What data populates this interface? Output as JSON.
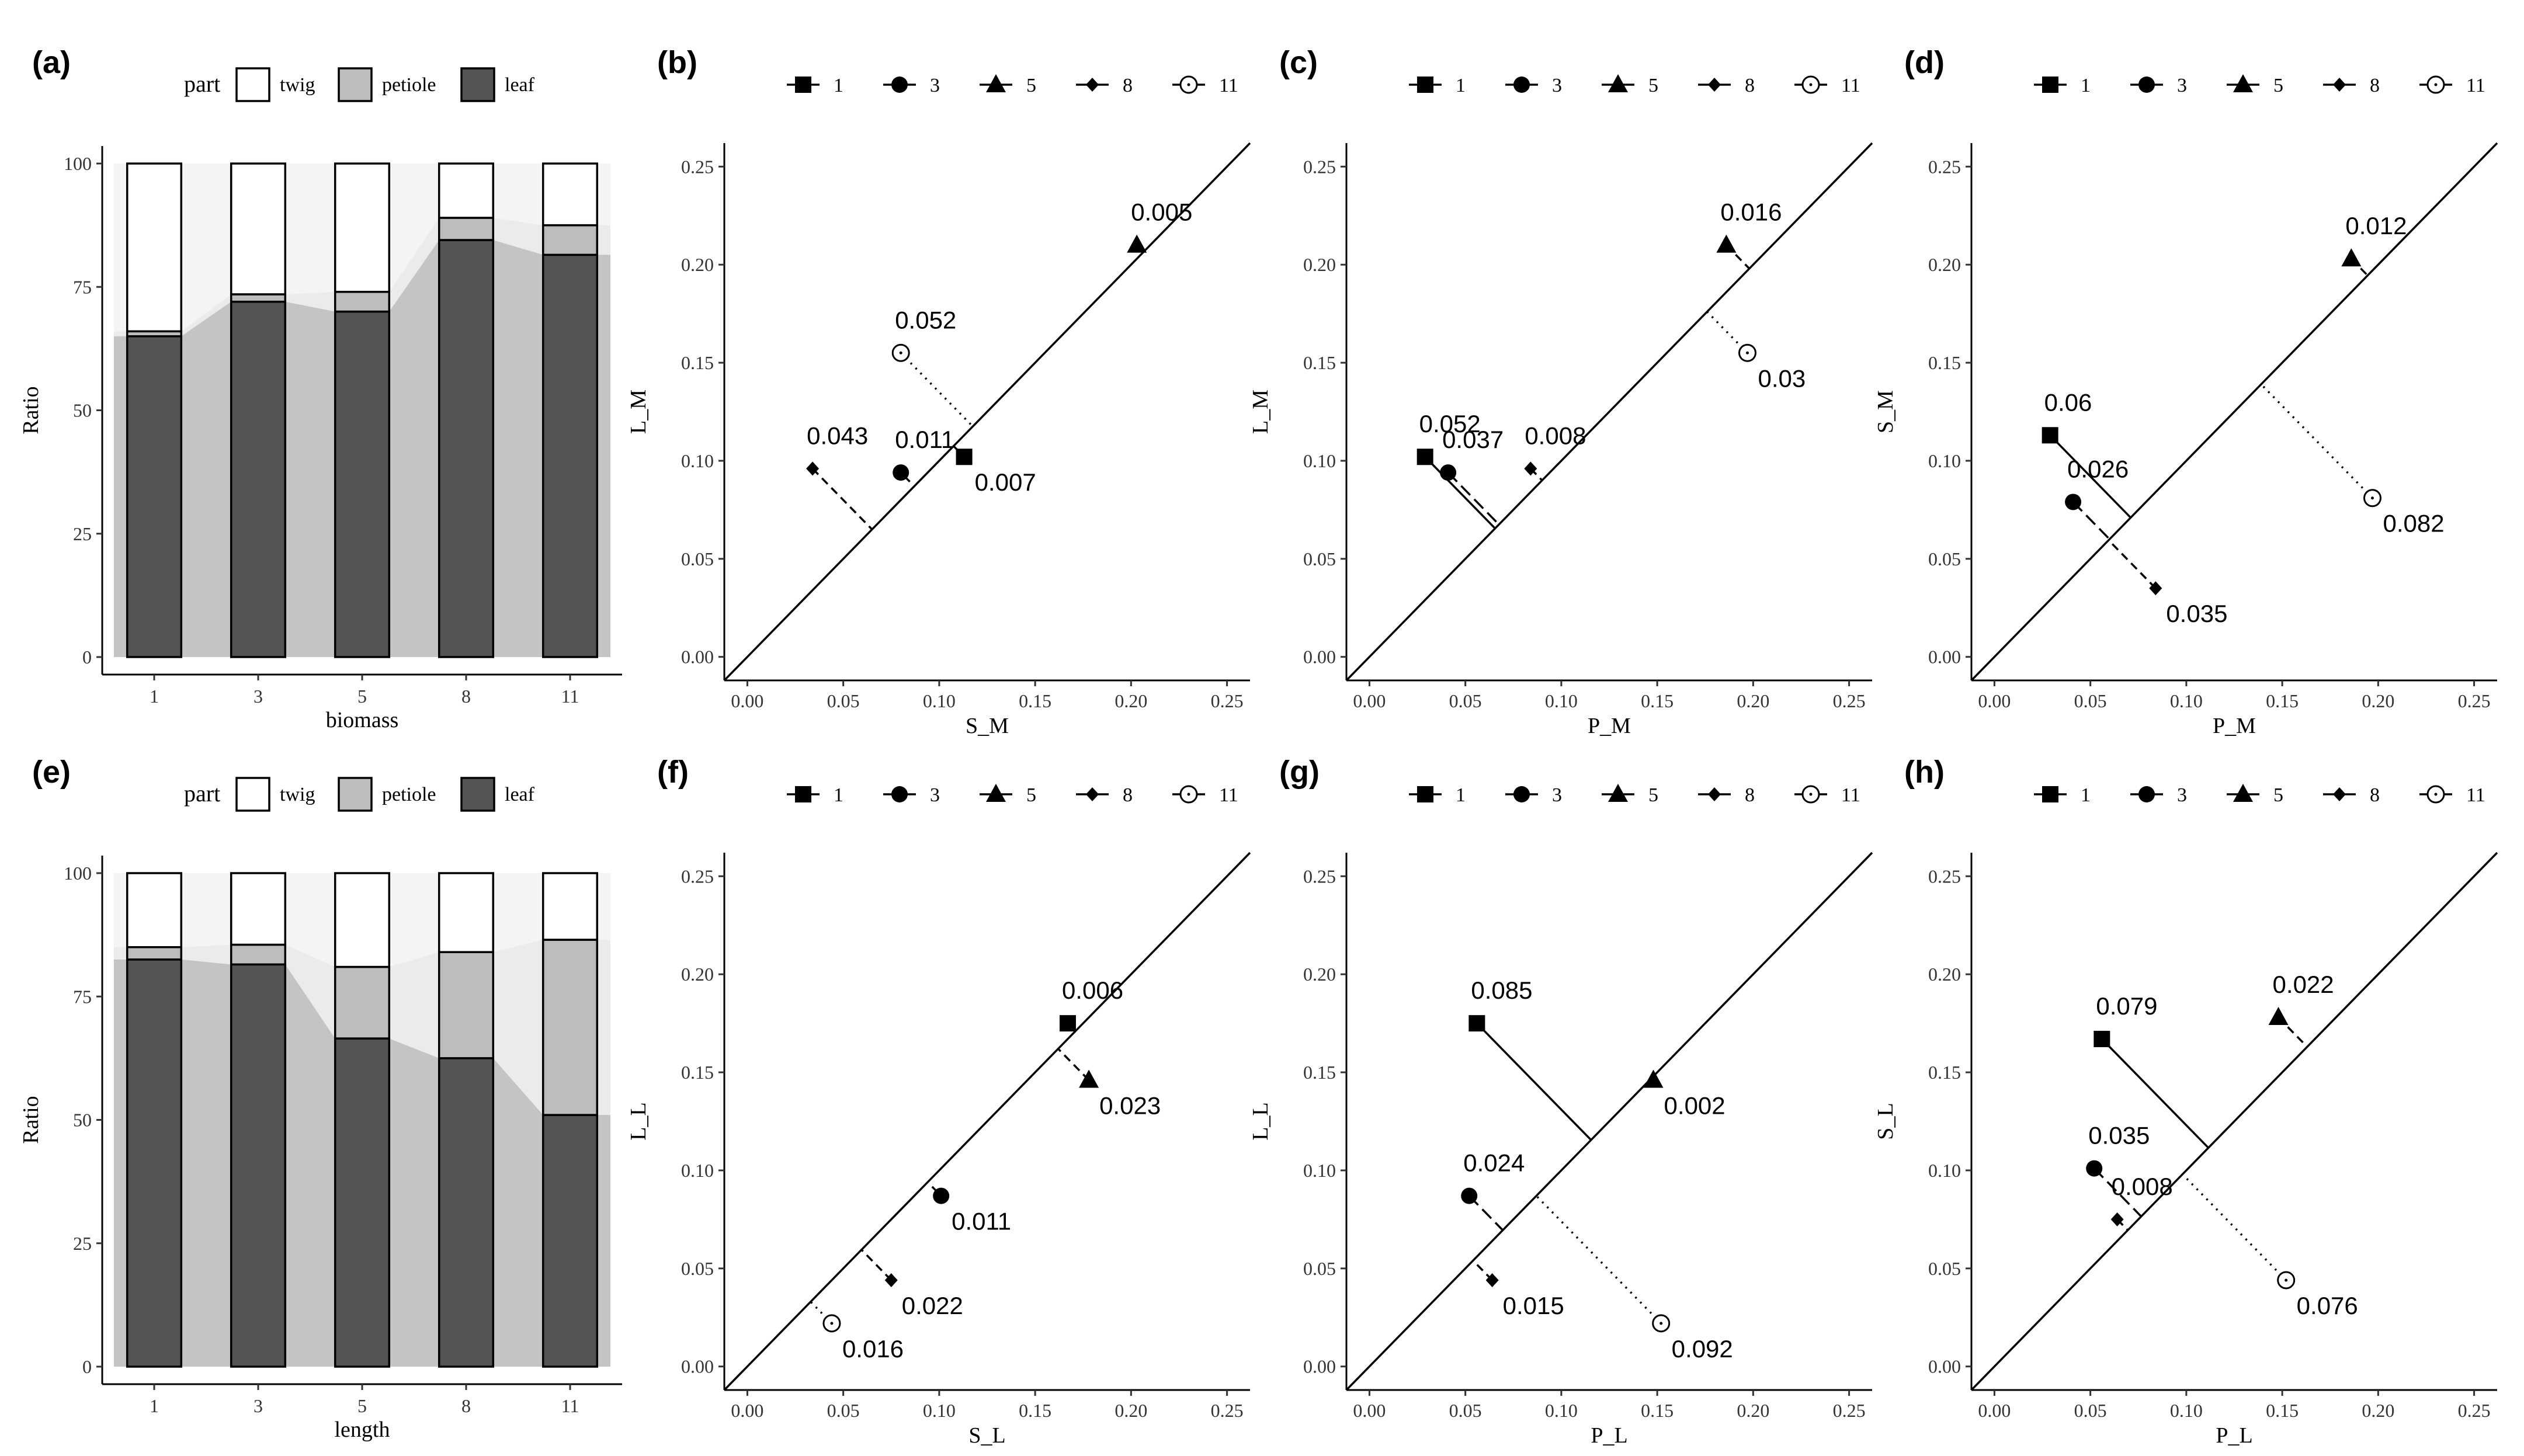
{
  "figure": {
    "title": ""
  },
  "chart_data": [
    {
      "type": "bar",
      "panel": "(a)",
      "stacked": true,
      "xlabel": "biomass",
      "ylabel": "Ratio",
      "ylim": [
        0,
        100
      ],
      "yticks": [
        "0",
        "25",
        "50",
        "75",
        "100"
      ],
      "categories": [
        "1",
        "3",
        "5",
        "8",
        "11"
      ],
      "legend": {
        "title": "part",
        "entries": [
          "twig",
          "petiole",
          "leaf"
        ],
        "colors": [
          "#ffffff",
          "#bdbdbd",
          "#545454"
        ]
      },
      "series": [
        {
          "name": "leaf",
          "values": [
            65,
            72,
            70,
            84.5,
            81.5
          ]
        },
        {
          "name": "petiole",
          "values": [
            1,
            1.5,
            4,
            4.5,
            6
          ]
        },
        {
          "name": "twig",
          "values": [
            34,
            26.5,
            26,
            11,
            12.5
          ]
        }
      ]
    },
    {
      "type": "scatter",
      "panel": "(b)",
      "xlabel": "S_M",
      "ylabel": "L_M",
      "xlim": [
        -0.012,
        0.262
      ],
      "ylim": [
        -0.012,
        0.262
      ],
      "xticks": [
        "0.00",
        "0.05",
        "0.10",
        "0.15",
        "0.20",
        "0.25"
      ],
      "yticks": [
        "0.00",
        "0.05",
        "0.10",
        "0.15",
        "0.20",
        "0.25"
      ],
      "legend": [
        "1",
        "3",
        "5",
        "8",
        "11"
      ],
      "points": [
        {
          "group": "1",
          "shape": "square",
          "x": 0.113,
          "y": 0.102,
          "dist": "0.007",
          "line": "solid"
        },
        {
          "group": "3",
          "shape": "circle",
          "x": 0.08,
          "y": 0.094,
          "dist": "0.011",
          "line": "longdash"
        },
        {
          "group": "5",
          "shape": "triangle",
          "x": 0.203,
          "y": 0.21,
          "dist": "0.005",
          "line": "dashed"
        },
        {
          "group": "8",
          "shape": "diamond",
          "x": 0.034,
          "y": 0.096,
          "dist": "0.043",
          "line": "dashed"
        },
        {
          "group": "11",
          "shape": "circle-open",
          "x": 0.08,
          "y": 0.155,
          "dist": "0.052",
          "line": "dotted"
        }
      ]
    },
    {
      "type": "scatter",
      "panel": "(c)",
      "xlabel": "P_M",
      "ylabel": "L_M",
      "xlim": [
        -0.012,
        0.262
      ],
      "ylim": [
        -0.012,
        0.262
      ],
      "xticks": [
        "0.00",
        "0.05",
        "0.10",
        "0.15",
        "0.20",
        "0.25"
      ],
      "yticks": [
        "0.00",
        "0.05",
        "0.10",
        "0.15",
        "0.20",
        "0.25"
      ],
      "legend": [
        "1",
        "3",
        "5",
        "8",
        "11"
      ],
      "points": [
        {
          "group": "1",
          "shape": "square",
          "x": 0.029,
          "y": 0.102,
          "dist": "0.052",
          "line": "solid"
        },
        {
          "group": "3",
          "shape": "circle",
          "x": 0.041,
          "y": 0.094,
          "dist": "0.037",
          "line": "longdash"
        },
        {
          "group": "5",
          "shape": "triangle",
          "x": 0.186,
          "y": 0.21,
          "dist": "0.016",
          "line": "dashed"
        },
        {
          "group": "8",
          "shape": "diamond",
          "x": 0.084,
          "y": 0.096,
          "dist": "0.008",
          "line": "dashed"
        },
        {
          "group": "11",
          "shape": "circle-open",
          "x": 0.197,
          "y": 0.155,
          "dist": "0.03",
          "line": "dotted"
        }
      ]
    },
    {
      "type": "scatter",
      "panel": "(d)",
      "xlabel": "P_M",
      "ylabel": "S_M",
      "xlim": [
        -0.012,
        0.262
      ],
      "ylim": [
        -0.012,
        0.262
      ],
      "xticks": [
        "0.00",
        "0.05",
        "0.10",
        "0.15",
        "0.20",
        "0.25"
      ],
      "yticks": [
        "0.00",
        "0.05",
        "0.10",
        "0.15",
        "0.20",
        "0.25"
      ],
      "legend": [
        "1",
        "3",
        "5",
        "8",
        "11"
      ],
      "points": [
        {
          "group": "1",
          "shape": "square",
          "x": 0.029,
          "y": 0.113,
          "dist": "0.06",
          "line": "solid"
        },
        {
          "group": "3",
          "shape": "circle",
          "x": 0.041,
          "y": 0.079,
          "dist": "0.026",
          "line": "longdash"
        },
        {
          "group": "5",
          "shape": "triangle",
          "x": 0.186,
          "y": 0.203,
          "dist": "0.012",
          "line": "dashed"
        },
        {
          "group": "8",
          "shape": "diamond",
          "x": 0.084,
          "y": 0.035,
          "dist": "0.035",
          "line": "dashed"
        },
        {
          "group": "11",
          "shape": "circle-open",
          "x": 0.197,
          "y": 0.081,
          "dist": "0.082",
          "line": "dotted"
        }
      ]
    },
    {
      "type": "bar",
      "panel": "(e)",
      "stacked": true,
      "xlabel": "length",
      "ylabel": "Ratio",
      "ylim": [
        0,
        100
      ],
      "yticks": [
        "0",
        "25",
        "50",
        "75",
        "100"
      ],
      "categories": [
        "1",
        "3",
        "5",
        "8",
        "11"
      ],
      "legend": {
        "title": "part",
        "entries": [
          "twig",
          "petiole",
          "leaf"
        ],
        "colors": [
          "#ffffff",
          "#bdbdbd",
          "#545454"
        ]
      },
      "series": [
        {
          "name": "leaf",
          "values": [
            82.5,
            81.5,
            66.5,
            62.5,
            51
          ]
        },
        {
          "name": "petiole",
          "values": [
            2.5,
            4,
            14.5,
            21.5,
            35.5
          ]
        },
        {
          "name": "twig",
          "values": [
            15,
            14.5,
            19,
            16,
            13.5
          ]
        }
      ]
    },
    {
      "type": "scatter",
      "panel": "(f)",
      "xlabel": "S_L",
      "ylabel": "L_L",
      "xlim": [
        -0.012,
        0.262
      ],
      "ylim": [
        -0.012,
        0.262
      ],
      "xticks": [
        "0.00",
        "0.05",
        "0.10",
        "0.15",
        "0.20",
        "0.25"
      ],
      "yticks": [
        "0.00",
        "0.05",
        "0.10",
        "0.15",
        "0.20",
        "0.25"
      ],
      "legend": [
        "1",
        "3",
        "5",
        "8",
        "11"
      ],
      "points": [
        {
          "group": "1",
          "shape": "square",
          "x": 0.167,
          "y": 0.175,
          "dist": "0.006",
          "line": "solid"
        },
        {
          "group": "3",
          "shape": "circle",
          "x": 0.101,
          "y": 0.087,
          "dist": "0.011",
          "line": "longdash"
        },
        {
          "group": "5",
          "shape": "triangle",
          "x": 0.178,
          "y": 0.146,
          "dist": "0.023",
          "line": "dashed"
        },
        {
          "group": "8",
          "shape": "diamond",
          "x": 0.075,
          "y": 0.044,
          "dist": "0.022",
          "line": "dashed"
        },
        {
          "group": "11",
          "shape": "circle-open",
          "x": 0.044,
          "y": 0.022,
          "dist": "0.016",
          "line": "dotted"
        }
      ]
    },
    {
      "type": "scatter",
      "panel": "(g)",
      "xlabel": "P_L",
      "ylabel": "L_L",
      "xlim": [
        -0.012,
        0.262
      ],
      "ylim": [
        -0.012,
        0.262
      ],
      "xticks": [
        "0.00",
        "0.05",
        "0.10",
        "0.15",
        "0.20",
        "0.25"
      ],
      "yticks": [
        "0.00",
        "0.05",
        "0.10",
        "0.15",
        "0.20",
        "0.25"
      ],
      "legend": [
        "1",
        "3",
        "5",
        "8",
        "11"
      ],
      "points": [
        {
          "group": "1",
          "shape": "square",
          "x": 0.056,
          "y": 0.175,
          "dist": "0.085",
          "line": "solid"
        },
        {
          "group": "3",
          "shape": "circle",
          "x": 0.052,
          "y": 0.087,
          "dist": "0.024",
          "line": "longdash"
        },
        {
          "group": "5",
          "shape": "triangle",
          "x": 0.148,
          "y": 0.146,
          "dist": "0.002",
          "line": "dashed"
        },
        {
          "group": "8",
          "shape": "diamond",
          "x": 0.064,
          "y": 0.044,
          "dist": "0.015",
          "line": "dashed"
        },
        {
          "group": "11",
          "shape": "circle-open",
          "x": 0.152,
          "y": 0.022,
          "dist": "0.092",
          "line": "dotted"
        }
      ]
    },
    {
      "type": "scatter",
      "panel": "(h)",
      "xlabel": "P_L",
      "ylabel": "S_L",
      "xlim": [
        -0.012,
        0.262
      ],
      "ylim": [
        -0.012,
        0.262
      ],
      "xticks": [
        "0.00",
        "0.05",
        "0.10",
        "0.15",
        "0.20",
        "0.25"
      ],
      "yticks": [
        "0.00",
        "0.05",
        "0.10",
        "0.15",
        "0.20",
        "0.25"
      ],
      "legend": [
        "1",
        "3",
        "5",
        "8",
        "11"
      ],
      "points": [
        {
          "group": "1",
          "shape": "square",
          "x": 0.056,
          "y": 0.167,
          "dist": "0.079",
          "line": "solid"
        },
        {
          "group": "3",
          "shape": "circle",
          "x": 0.052,
          "y": 0.101,
          "dist": "0.035",
          "line": "longdash"
        },
        {
          "group": "5",
          "shape": "triangle",
          "x": 0.148,
          "y": 0.178,
          "dist": "0.022",
          "line": "dashed"
        },
        {
          "group": "8",
          "shape": "diamond",
          "x": 0.064,
          "y": 0.075,
          "dist": "0.008",
          "line": "dashed"
        },
        {
          "group": "11",
          "shape": "circle-open",
          "x": 0.152,
          "y": 0.044,
          "dist": "0.076",
          "line": "dotted"
        }
      ]
    }
  ]
}
